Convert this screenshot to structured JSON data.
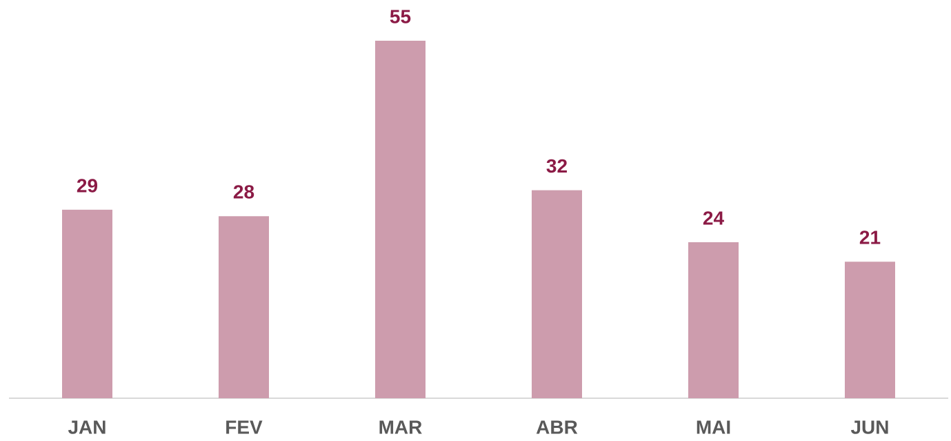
{
  "chart_data": {
    "type": "bar",
    "categories": [
      "JAN",
      "FEV",
      "MAR",
      "ABR",
      "MAI",
      "JUN"
    ],
    "values": [
      29,
      28,
      55,
      32,
      24,
      21
    ],
    "color": "#cd9cad",
    "label_color": "#8b1a45",
    "grid": false
  }
}
